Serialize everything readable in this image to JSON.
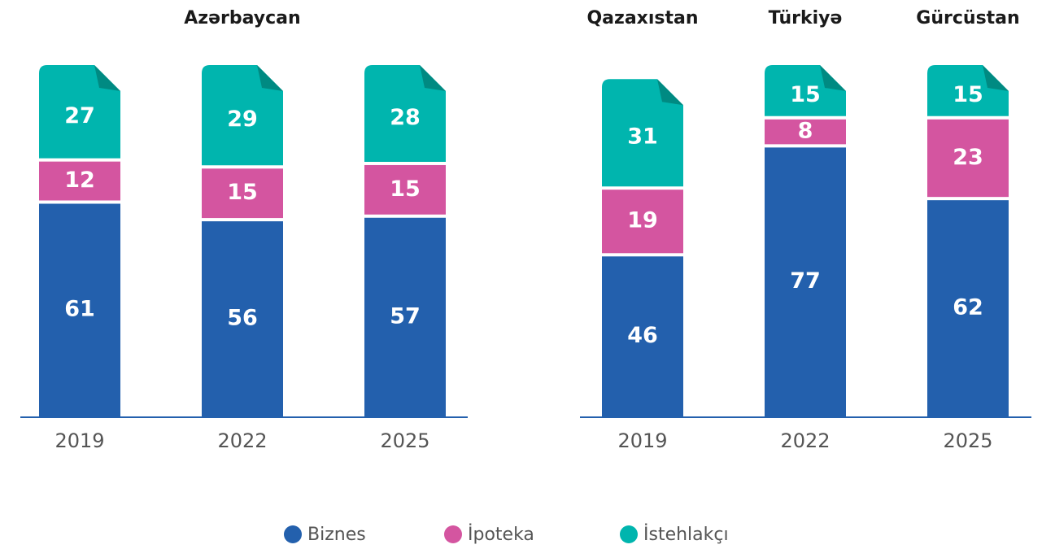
{
  "chart_data": [
    {
      "type": "bar",
      "stacked": true,
      "title": "Azərbaycan",
      "categories": [
        "2019",
        "2022",
        "2025"
      ],
      "ylim": [
        0,
        100
      ],
      "series": [
        {
          "name": "Biznes",
          "color": "#2360ad",
          "values": [
            61,
            56,
            57
          ]
        },
        {
          "name": "İpoteka",
          "color": "#d455a0",
          "values": [
            12,
            15,
            15
          ]
        },
        {
          "name": "İstehlakçı",
          "color": "#00b5ae",
          "values": [
            27,
            29,
            28
          ]
        }
      ]
    },
    {
      "type": "bar",
      "stacked": true,
      "bar_titles": [
        "Qazaxıstan",
        "Türkiyə",
        "Gürcüstan"
      ],
      "categories": [
        "2019",
        "2022",
        "2025"
      ],
      "ylim": [
        0,
        100
      ],
      "series": [
        {
          "color": "#2360ad",
          "values": [
            46,
            77,
            62
          ]
        },
        {
          "color": "#d455a0",
          "values": [
            19,
            8,
            23
          ]
        },
        {
          "color": "#00b5ae",
          "values": [
            31,
            15,
            15
          ]
        }
      ]
    }
  ]
}
